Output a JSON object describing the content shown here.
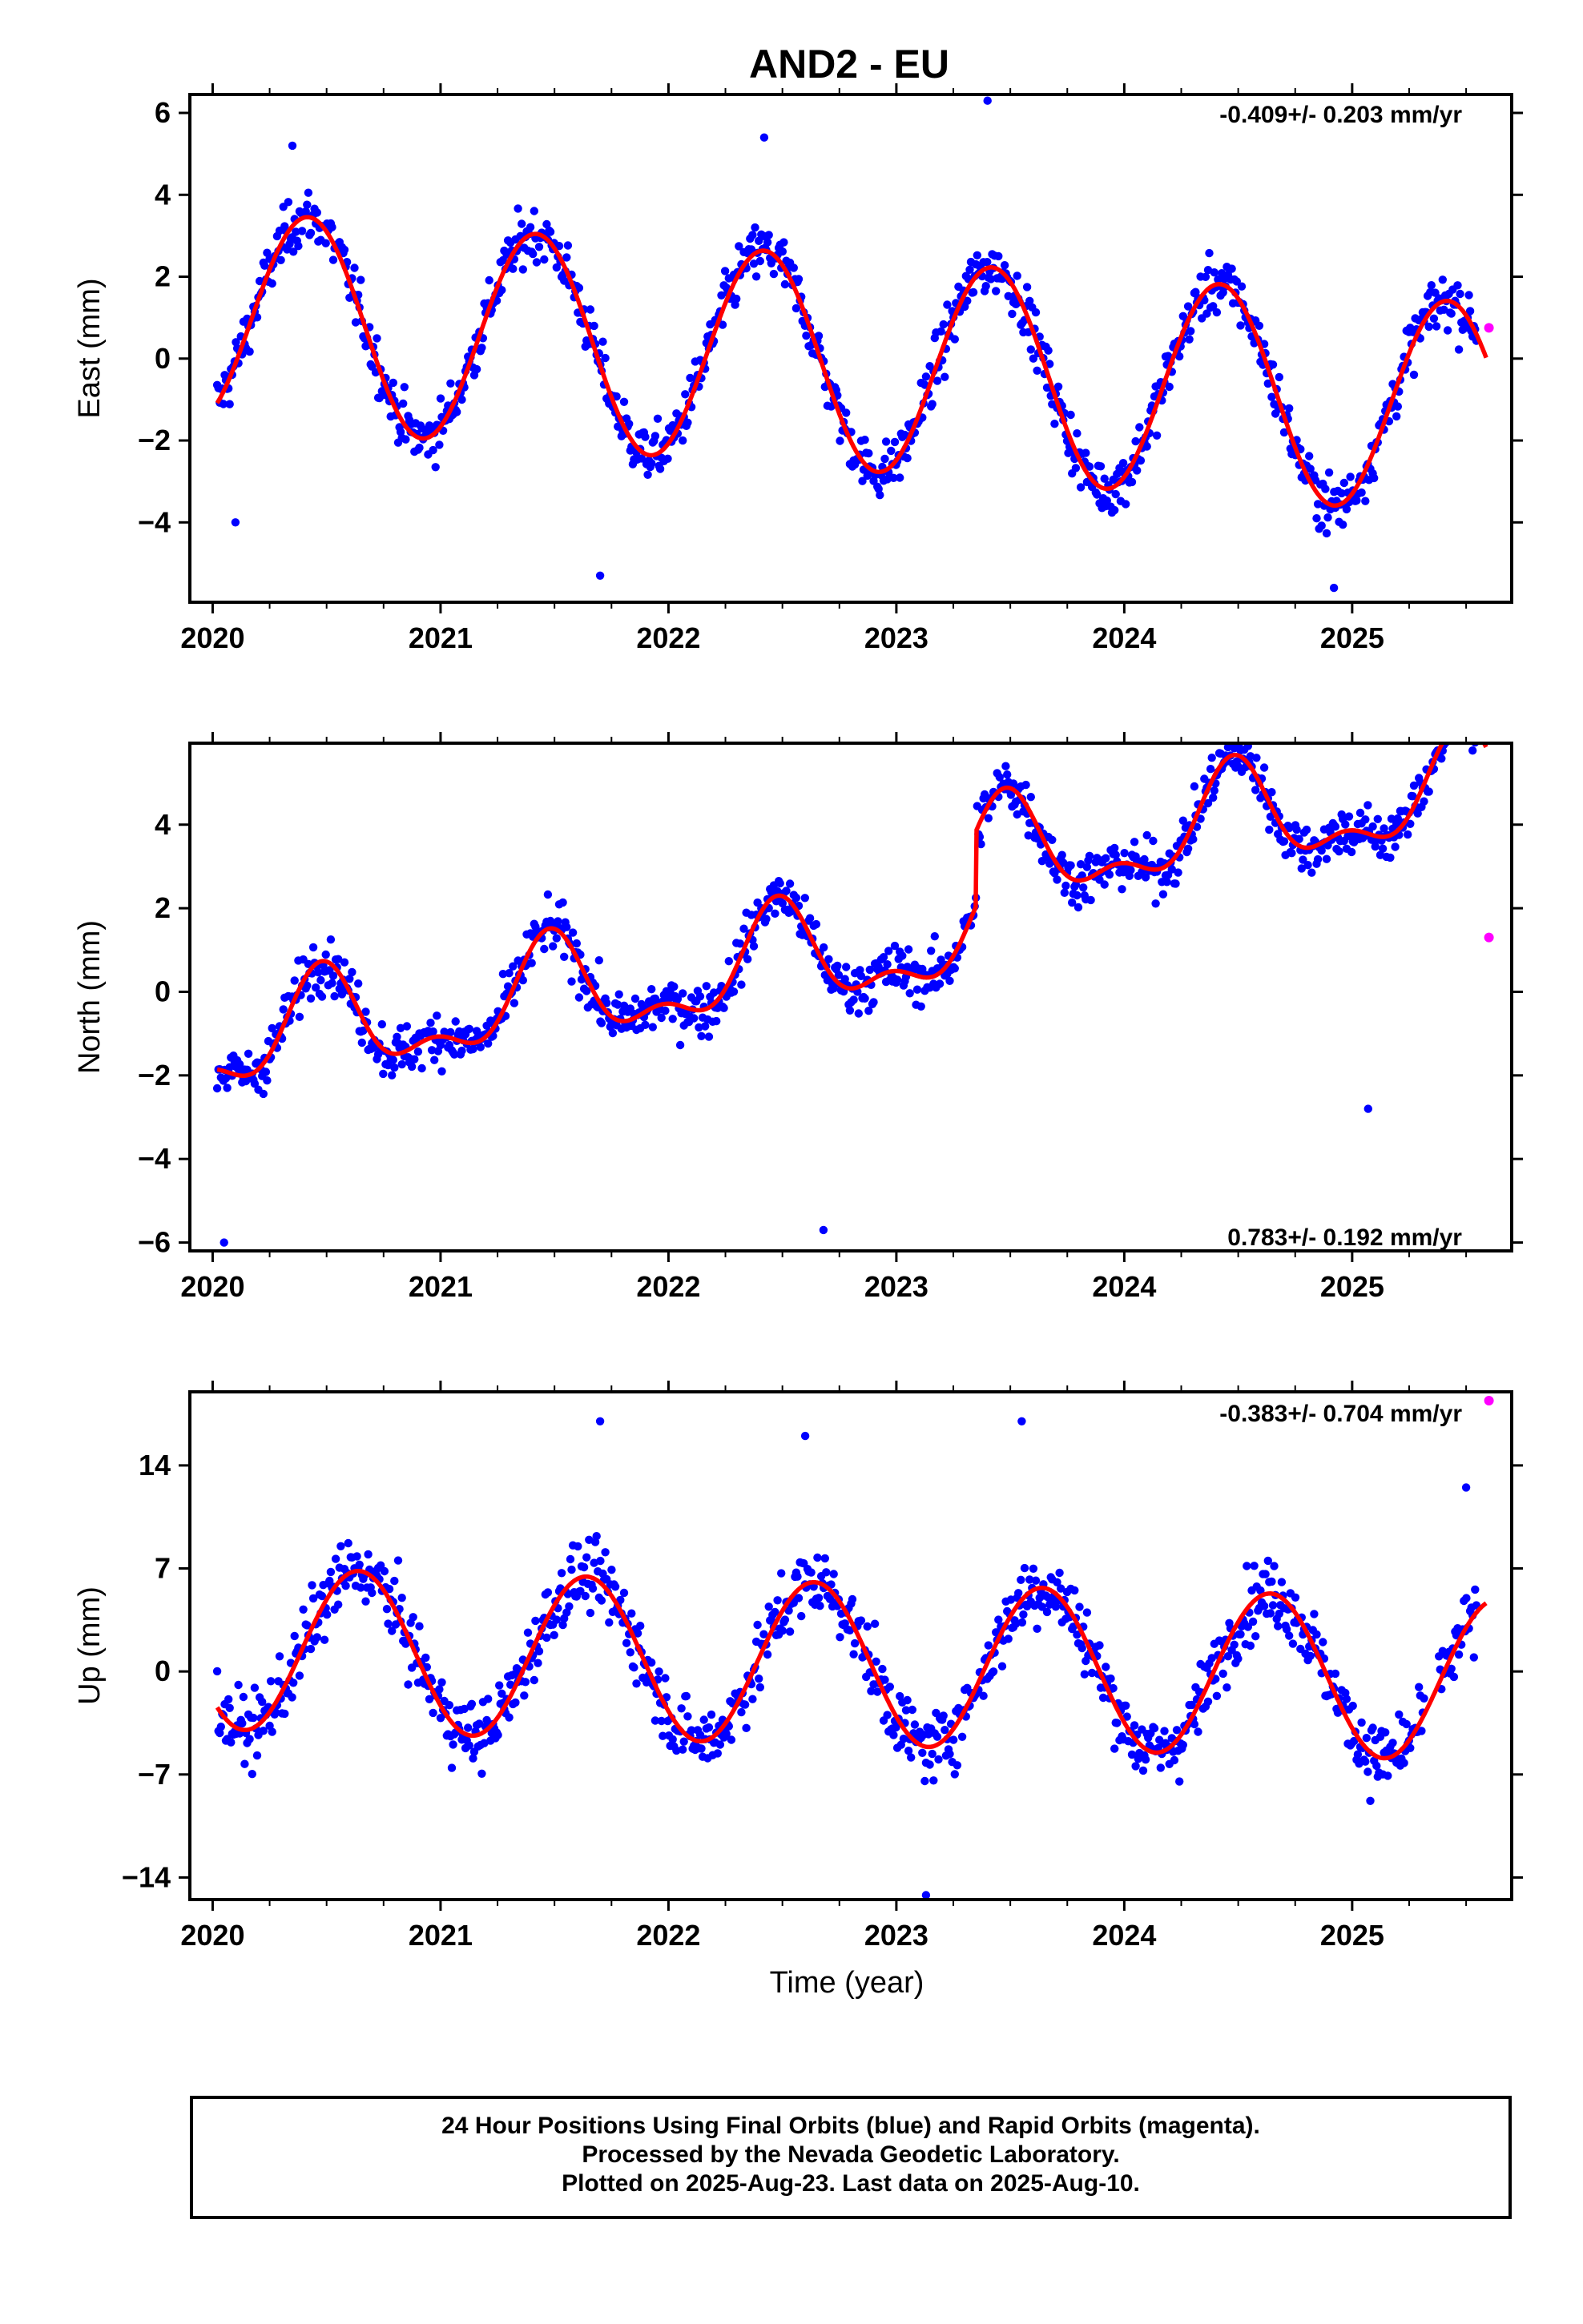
{
  "figure": {
    "title": "AND2 - EU",
    "xlabel": "Time (year)"
  },
  "colors": {
    "final_orbits": "#0000ff",
    "rapid_orbits": "#ff00ff",
    "model": "#ff0000",
    "axis": "#000000"
  },
  "footer": {
    "line1": "24 Hour Positions Using Final Orbits (blue) and Rapid Orbits (magenta).",
    "line2": "Processed by the Nevada Geodetic Laboratory.",
    "line3": "Plotted on 2025-Aug-23. Last data on 2025-Aug-10."
  },
  "chart_data": [
    {
      "type": "scatter",
      "ylabel": "East (mm)",
      "rate_label": "-0.409+/- 0.203 mm/yr",
      "xlim": [
        2019.9,
        2025.7
      ],
      "ylim": [
        -5.95,
        6.45
      ],
      "xticks": [
        2020,
        2021,
        2022,
        2023,
        2024,
        2025
      ],
      "yticks": [
        -4,
        -2,
        0,
        2,
        4,
        6
      ],
      "ytick_labels": [
        "−4",
        "−2",
        "0",
        "2",
        "4",
        "6"
      ],
      "model": {
        "offset": -0.12,
        "rate": -0.409,
        "ref_year": 2022.8,
        "annual_amp": 2.6,
        "annual_peak": 0.42,
        "semi_amp": 0.0,
        "semi_peak": 0.0
      },
      "final_points": {
        "noise_sd": 0.85,
        "step_days": 2,
        "outliers": [
          [
            2020.1,
            -4.0
          ],
          [
            2021.7,
            -5.3
          ],
          [
            2024.92,
            -5.6
          ],
          [
            2023.4,
            6.3
          ],
          [
            2020.35,
            5.2
          ],
          [
            2022.42,
            5.4
          ]
        ]
      },
      "rapid_points": [
        [
          2025.6,
          0.75
        ]
      ]
    },
    {
      "type": "scatter",
      "ylabel": "North (mm)",
      "rate_label": "0.783+/- 0.192 mm/yr",
      "xlim": [
        2019.9,
        2025.7
      ],
      "ylim": [
        -6.2,
        5.95
      ],
      "xticks": [
        2020,
        2021,
        2022,
        2023,
        2024,
        2025
      ],
      "yticks": [
        -6,
        -4,
        -2,
        0,
        2,
        4
      ],
      "ytick_labels": [
        "−6",
        "−4",
        "−2",
        "0",
        "2",
        "4"
      ],
      "model": {
        "offset": 0.9,
        "rate": 0.783,
        "ref_year": 2022.8,
        "annual_amp": 1.1,
        "annual_peak": 0.48,
        "semi_amp": 0.55,
        "semi_peak": 0.48,
        "steps": [
          [
            2023.35,
            1.8
          ]
        ]
      },
      "final_points": {
        "noise_sd": 0.8,
        "step_days": 2,
        "outliers": [
          [
            2020.05,
            -6.0
          ],
          [
            2022.68,
            -5.7
          ],
          [
            2025.07,
            -2.8
          ],
          [
            2024.58,
            5.6
          ],
          [
            2023.48,
            5.4
          ]
        ]
      },
      "rapid_points": [
        [
          2025.6,
          1.3
        ]
      ]
    },
    {
      "type": "scatter",
      "ylabel": "Up (mm)",
      "rate_label": "-0.383+/- 0.704 mm/yr",
      "xlim": [
        2019.9,
        2025.7
      ],
      "ylim": [
        -15.5,
        19.0
      ],
      "xticks": [
        2020,
        2021,
        2022,
        2023,
        2024,
        2025
      ],
      "yticks": [
        -14,
        -7,
        0,
        7,
        14
      ],
      "ytick_labels": [
        "−14",
        "−7",
        "0",
        "7",
        "14"
      ],
      "model": {
        "offset": 0.5,
        "rate": -0.383,
        "ref_year": 2022.8,
        "annual_amp": 5.5,
        "annual_peak": 0.64,
        "semi_amp": 0.0,
        "semi_peak": 0.0
      },
      "final_points": {
        "noise_sd": 3.0,
        "step_days": 2,
        "outliers": [
          [
            2023.13,
            -15.2
          ],
          [
            2021.7,
            17.0
          ],
          [
            2022.6,
            16.0
          ],
          [
            2023.55,
            17.0
          ],
          [
            2025.5,
            12.5
          ]
        ]
      },
      "rapid_points": [
        [
          2025.6,
          18.4
        ]
      ]
    }
  ]
}
